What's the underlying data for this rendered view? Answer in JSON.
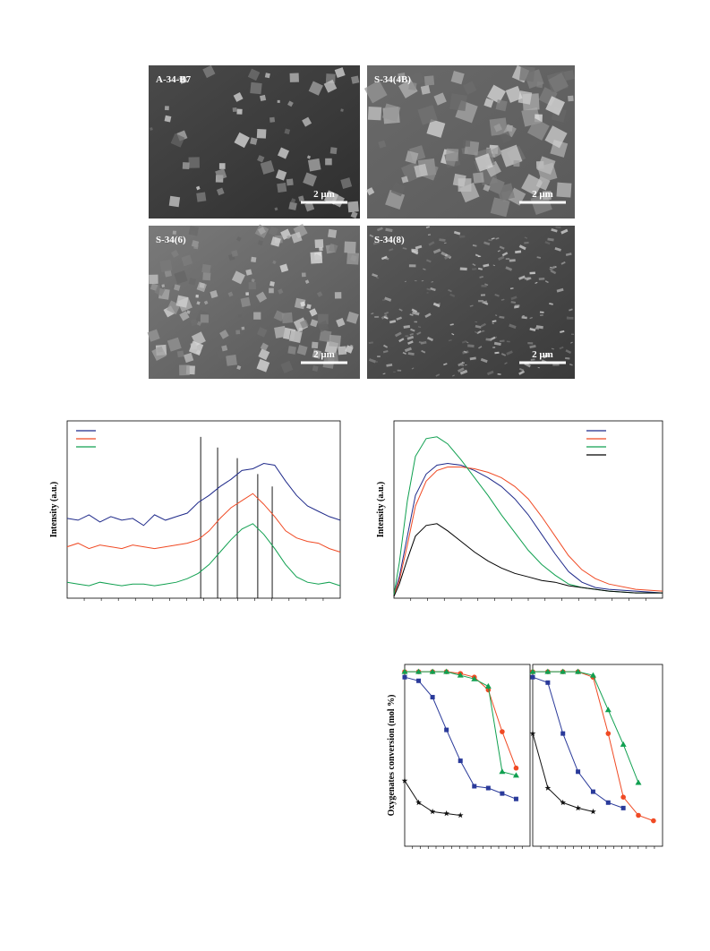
{
  "figures": [
    {
      "label": "A-34-B7",
      "scale": "2 μm"
    },
    {
      "label": "S-34(4B)",
      "scale": "2 μm"
    },
    {
      "label": "S-34(6)",
      "scale": "2 μm"
    },
    {
      "label": "S-34(8)",
      "scale": "2 μm"
    }
  ],
  "chart_data": [
    {
      "type": "line",
      "ylabel": "Intensity (a.u.)",
      "x": [
        0,
        4,
        8,
        12,
        16,
        20,
        24,
        28,
        32,
        36,
        40,
        44,
        48,
        52,
        56,
        60,
        64,
        68,
        72,
        76,
        80,
        84,
        88,
        92,
        96,
        100
      ],
      "series": [
        {
          "color": "#1f2a8a",
          "values": [
            45,
            44,
            47,
            43,
            46,
            44,
            45,
            41,
            47,
            44,
            46,
            48,
            54,
            58,
            63,
            67,
            72,
            73,
            76,
            75,
            66,
            58,
            52,
            49,
            46,
            44
          ]
        },
        {
          "color": "#f04a24",
          "values": [
            29,
            31,
            28,
            30,
            29,
            28,
            30,
            29,
            28,
            29,
            30,
            31,
            33,
            38,
            45,
            51,
            55,
            59,
            53,
            46,
            38,
            34,
            32,
            31,
            28,
            26
          ]
        },
        {
          "color": "#10a050",
          "values": [
            9,
            8,
            7,
            9,
            8,
            7,
            8,
            8,
            7,
            8,
            9,
            11,
            14,
            19,
            26,
            33,
            39,
            42,
            36,
            28,
            19,
            12,
            9,
            8,
            9,
            7
          ]
        }
      ],
      "reference_lines": [
        {
          "x": 48.9,
          "y": 91
        },
        {
          "x": 55.1,
          "y": 85
        },
        {
          "x": 62.3,
          "y": 79
        },
        {
          "x": 69.8,
          "y": 70
        },
        {
          "x": 75.1,
          "y": 63
        }
      ],
      "xlim": [
        0,
        100
      ],
      "ylim": [
        0,
        100
      ]
    },
    {
      "type": "line",
      "ylabel": "Intensity (a.u.)",
      "x": [
        0,
        2,
        5,
        8,
        12,
        16,
        20,
        25,
        30,
        35,
        40,
        45,
        50,
        55,
        60,
        65,
        70,
        75,
        80,
        90,
        100
      ],
      "series": [
        {
          "color": "#1f2a8a",
          "values": [
            2,
            12,
            35,
            58,
            70,
            75,
            76,
            75,
            72,
            68,
            63,
            56,
            47,
            36,
            25,
            15,
            9,
            6,
            5,
            4,
            3
          ]
        },
        {
          "color": "#f04a24",
          "values": [
            2,
            10,
            30,
            52,
            66,
            72,
            74,
            74,
            73,
            71,
            68,
            63,
            56,
            46,
            35,
            24,
            16,
            11,
            8,
            5,
            4
          ]
        },
        {
          "color": "#10a050",
          "values": [
            2,
            20,
            55,
            80,
            90,
            91,
            87,
            78,
            68,
            58,
            47,
            37,
            27,
            19,
            13,
            8,
            6,
            5,
            4,
            3,
            3
          ]
        },
        {
          "color": "#000000",
          "values": [
            1,
            8,
            22,
            35,
            41,
            42,
            38,
            32,
            26,
            21,
            17,
            14,
            12,
            10,
            9,
            7,
            6,
            5,
            4,
            3,
            3
          ]
        }
      ],
      "xlim": [
        0,
        100
      ],
      "ylim": [
        0,
        100
      ]
    },
    {
      "type": "line",
      "ylabel": "Oxygenates conversion (mol %)",
      "x": [
        0,
        1,
        2,
        3,
        4,
        5,
        6,
        7,
        8
      ],
      "series": [
        {
          "color": "#2a3a9a",
          "marker": "square",
          "values": [
            93,
            91,
            82,
            64,
            47,
            33,
            32,
            29,
            26
          ]
        },
        {
          "color": "#f04a24",
          "marker": "circle",
          "values": [
            96,
            96,
            96,
            96,
            95,
            93,
            86,
            63,
            43
          ]
        },
        {
          "color": "#10a050",
          "marker": "triangle",
          "values": [
            96,
            96,
            96,
            96,
            94,
            92,
            88,
            41,
            39
          ]
        },
        {
          "color": "#111111",
          "marker": "star",
          "values": [
            36,
            24,
            19,
            18,
            17,
            null,
            null,
            null,
            null
          ]
        }
      ],
      "xlim": [
        0,
        9
      ],
      "ylim": [
        0,
        100
      ]
    },
    {
      "type": "line",
      "x": [
        0,
        1,
        2,
        3,
        4,
        5,
        6,
        7,
        8
      ],
      "series": [
        {
          "color": "#2a3a9a",
          "marker": "square",
          "values": [
            93,
            90,
            62,
            41,
            30,
            24,
            21,
            null,
            null
          ]
        },
        {
          "color": "#f04a24",
          "marker": "circle",
          "values": [
            96,
            96,
            96,
            96,
            93,
            62,
            27,
            17,
            14
          ]
        },
        {
          "color": "#10a050",
          "marker": "triangle",
          "values": [
            96,
            96,
            96,
            96,
            94,
            75,
            56,
            35,
            null
          ]
        },
        {
          "color": "#111111",
          "marker": "star",
          "values": [
            62,
            32,
            24,
            21,
            19,
            null,
            null,
            null,
            null
          ]
        }
      ],
      "xlim": [
        0,
        8.6
      ],
      "ylim": [
        0,
        100
      ]
    }
  ]
}
